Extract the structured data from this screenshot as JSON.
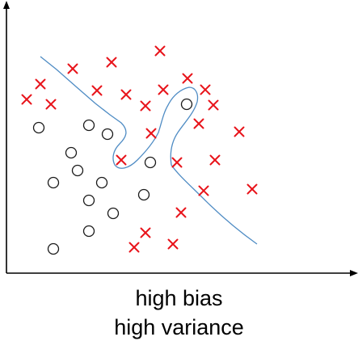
{
  "caption": {
    "line1": "high bias",
    "line2": "high variance"
  },
  "colors": {
    "axis": "#000000",
    "cross": "#e8141b",
    "circle": "#1a1a1a",
    "boundary": "#4f8cc4"
  },
  "icons": {
    "cross": "x-marker-icon",
    "circle": "circle-marker-icon"
  }
}
